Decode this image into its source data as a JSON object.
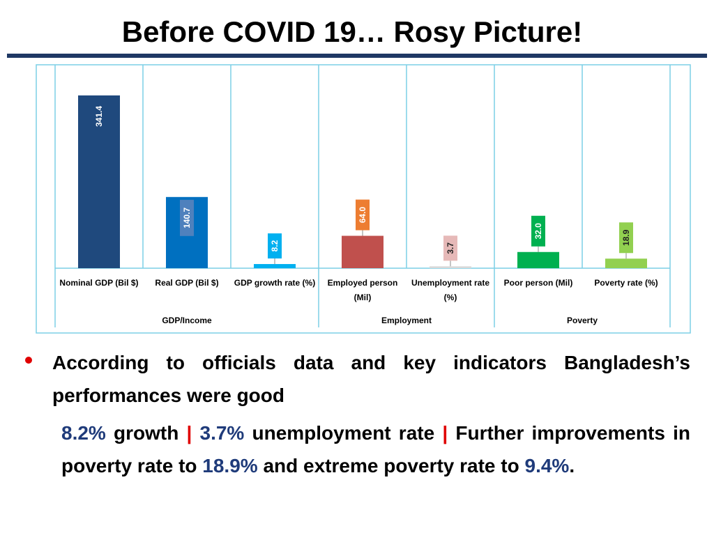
{
  "title": "Before COVID 19… Rosy Picture!",
  "chart_data": {
    "type": "bar",
    "categories": [
      "Nominal GDP (Bil $)",
      "Real GDP (Bil $)",
      "GDP growth rate (%)",
      "Employed person (Mil)",
      "Unemployment rate (%)",
      "Poor person (Mil)",
      "Poverty rate (%)"
    ],
    "values": [
      341.4,
      140.7,
      8.2,
      64.0,
      3.7,
      32.0,
      18.9
    ],
    "value_labels": [
      "341.4",
      "140.7",
      "8.2",
      "64.0",
      "3.7",
      "32.0",
      "18.9"
    ],
    "colors": [
      "#1f497d",
      "#0070c0",
      "#00b0f0",
      "#c0504d",
      "#d9d9d9",
      "#00b050",
      "#92d050"
    ],
    "label_colors": [
      "#1f497d",
      "#4f81bd",
      "#00b0f0",
      "#ed7d31",
      "#e6b9b8",
      "#00b050",
      "#92d050"
    ],
    "groups": [
      {
        "label": "GDP/Income",
        "span": 3
      },
      {
        "label": "Employment",
        "span": 2
      },
      {
        "label": "Poverty",
        "span": 2
      }
    ]
  },
  "bullets": [
    {
      "text": "According to officials data and key indicators Bangladesh’s performances were good",
      "detail": [
        {
          "text": "8.2%",
          "color": "#1f3b7a"
        },
        {
          "text": " growth ",
          "color": "#000000"
        },
        {
          "text": "|",
          "color": "#e00000"
        },
        {
          "text": " 3.7%",
          "color": "#1f3b7a"
        },
        {
          "text": " unemployment rate ",
          "color": "#000000"
        },
        {
          "text": "|",
          "color": "#e00000"
        },
        {
          "text": " Further improvements in poverty rate to ",
          "color": "#000000"
        },
        {
          "text": "18.9%",
          "color": "#1f3b7a"
        },
        {
          "text": " and extreme poverty rate to ",
          "color": "#000000"
        },
        {
          "text": "9.4%",
          "color": "#1f3b7a"
        },
        {
          "text": ".",
          "color": "#000000"
        }
      ]
    }
  ]
}
